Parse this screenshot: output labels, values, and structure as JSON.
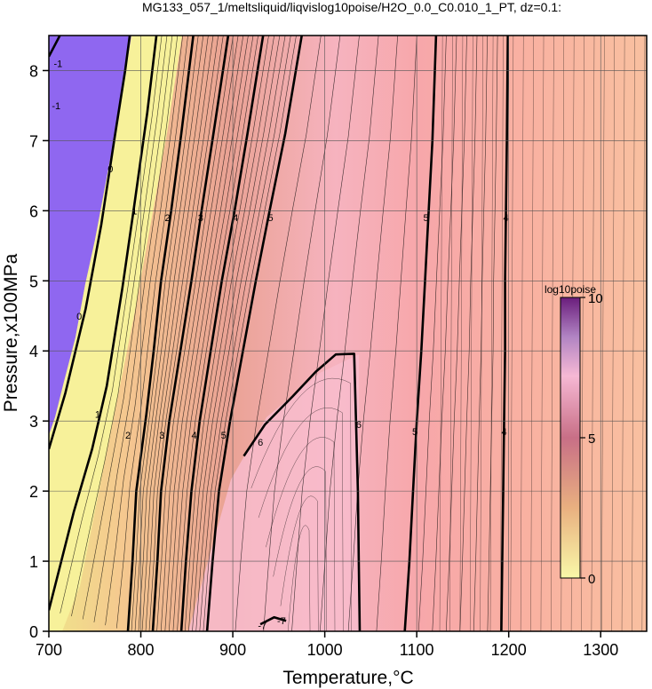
{
  "chart_data": {
    "type": "heatmap",
    "title": "MG133_057_1/meltsliquid/liqvislog10poise/H2O_0.0_C0.010_1_PT, dz=0.1:",
    "xlabel": "Temperature,°C",
    "ylabel": "Pressure,x100MPa",
    "xlim": [
      700,
      1350
    ],
    "ylim": [
      0,
      8.5
    ],
    "x_ticks": [
      700,
      800,
      900,
      1000,
      1100,
      1200,
      1300
    ],
    "y_ticks": [
      0,
      1,
      2,
      3,
      4,
      5,
      6,
      7,
      8
    ],
    "grid": true,
    "colorbar": {
      "title": "log10poise",
      "range": [
        0,
        10
      ],
      "ticks": [
        0,
        5,
        10
      ],
      "colors": [
        "#f8f8a8",
        "#e9b080",
        "#c86f86",
        "#f6b8d4",
        "#b184c3",
        "#6a1d7c"
      ]
    },
    "contour_labels": [
      {
        "value": "-1",
        "x": 710,
        "y": 8.1
      },
      {
        "value": "-1",
        "x": 708,
        "y": 7.5
      },
      {
        "value": "0",
        "x": 767,
        "y": 6.6
      },
      {
        "value": "0",
        "x": 733,
        "y": 4.5
      },
      {
        "value": "1",
        "x": 793,
        "y": 6.0
      },
      {
        "value": "1",
        "x": 753,
        "y": 3.1
      },
      {
        "value": "2",
        "x": 829,
        "y": 5.9
      },
      {
        "value": "2",
        "x": 786,
        "y": 2.8
      },
      {
        "value": "3",
        "x": 865,
        "y": 5.9
      },
      {
        "value": "3",
        "x": 823,
        "y": 2.8
      },
      {
        "value": "4",
        "x": 903,
        "y": 5.9
      },
      {
        "value": "4",
        "x": 858,
        "y": 2.8
      },
      {
        "value": "5",
        "x": 941,
        "y": 5.9
      },
      {
        "value": "5",
        "x": 890,
        "y": 2.8
      },
      {
        "value": "6",
        "x": 930,
        "y": 2.7
      },
      {
        "value": "6",
        "x": 1037,
        "y": 2.95
      },
      {
        "value": "5",
        "x": 1110,
        "y": 5.9
      },
      {
        "value": "5",
        "x": 1098,
        "y": 2.85
      },
      {
        "value": "4",
        "x": 1197,
        "y": 5.9
      },
      {
        "value": "4",
        "x": 1195,
        "y": 2.85
      },
      {
        "value": "-7",
        "x": 953,
        "y": 0.15
      },
      {
        "value": "-7",
        "x": 932,
        "y": 0.08
      }
    ],
    "contours": [
      {
        "value": "-1",
        "points": [
          [
            700,
            8.2
          ],
          [
            712,
            8.5
          ]
        ]
      },
      {
        "value": "0",
        "points": [
          [
            700,
            2.6
          ],
          [
            718,
            3.4
          ],
          [
            740,
            4.6
          ],
          [
            757,
            5.8
          ],
          [
            771,
            7.0
          ],
          [
            783,
            8.0
          ],
          [
            788,
            8.5
          ]
        ]
      },
      {
        "value": "1",
        "points": [
          [
            700,
            0.3
          ],
          [
            727,
            1.7
          ],
          [
            747,
            2.6
          ],
          [
            763,
            3.5
          ],
          [
            780,
            4.9
          ],
          [
            792,
            6.0
          ],
          [
            807,
            7.4
          ],
          [
            817,
            8.5
          ]
        ]
      },
      {
        "value": "2",
        "points": [
          [
            786,
            0
          ],
          [
            791,
            1.0
          ],
          [
            795,
            2.0
          ],
          [
            806,
            3.1
          ],
          [
            814,
            4.0
          ],
          [
            822,
            5.0
          ],
          [
            833,
            6.0
          ],
          [
            844,
            7.1
          ],
          [
            857,
            8.5
          ]
        ]
      },
      {
        "value": "3",
        "points": [
          [
            813,
            0
          ],
          [
            818,
            1.0
          ],
          [
            822,
            2.0
          ],
          [
            831,
            3.0
          ],
          [
            843,
            4.0
          ],
          [
            855,
            5.0
          ],
          [
            866,
            6.0
          ],
          [
            879,
            7.1
          ],
          [
            895,
            8.5
          ]
        ]
      },
      {
        "value": "4",
        "points": [
          [
            844,
            0
          ],
          [
            849,
            1.0
          ],
          [
            855,
            2.0
          ],
          [
            864,
            3.0
          ],
          [
            876,
            4.0
          ],
          [
            888,
            5.0
          ],
          [
            902,
            6.0
          ],
          [
            916,
            7.1
          ],
          [
            933,
            8.5
          ]
        ]
      },
      {
        "value": "5",
        "points": [
          [
            872,
            0
          ],
          [
            878,
            1.0
          ],
          [
            885,
            2.0
          ],
          [
            897,
            3.0
          ],
          [
            911,
            4.0
          ],
          [
            925,
            5.0
          ],
          [
            940,
            6.0
          ],
          [
            957,
            7.1
          ],
          [
            975,
            8.5
          ]
        ]
      },
      {
        "value": "6",
        "points": [
          [
            912,
            2.5
          ],
          [
            935,
            2.95
          ],
          [
            965,
            3.35
          ],
          [
            990,
            3.7
          ],
          [
            1012,
            3.95
          ],
          [
            1032,
            3.96
          ],
          [
            1034,
            3.0
          ],
          [
            1036,
            2.0
          ],
          [
            1037,
            1.0
          ],
          [
            1038,
            0
          ]
        ]
      },
      {
        "value": "5",
        "points": [
          [
            1087,
            0
          ],
          [
            1092,
            1.0
          ],
          [
            1096,
            2.0
          ],
          [
            1100,
            3.0
          ],
          [
            1105,
            4.0
          ],
          [
            1109,
            5.0
          ],
          [
            1113,
            6.0
          ],
          [
            1117,
            7.0
          ],
          [
            1121,
            8.5
          ]
        ]
      },
      {
        "value": "4",
        "points": [
          [
            1192,
            0
          ],
          [
            1193,
            1.0
          ],
          [
            1194,
            2.0
          ],
          [
            1195,
            3.0
          ],
          [
            1196,
            4.0
          ],
          [
            1196,
            5.0
          ],
          [
            1197,
            6.0
          ],
          [
            1198,
            7.0
          ],
          [
            1199,
            8.5
          ]
        ]
      },
      {
        "value": "-7",
        "points": [
          [
            930,
            0.1
          ],
          [
            945,
            0.2
          ],
          [
            958,
            0.15
          ]
        ]
      }
    ]
  }
}
